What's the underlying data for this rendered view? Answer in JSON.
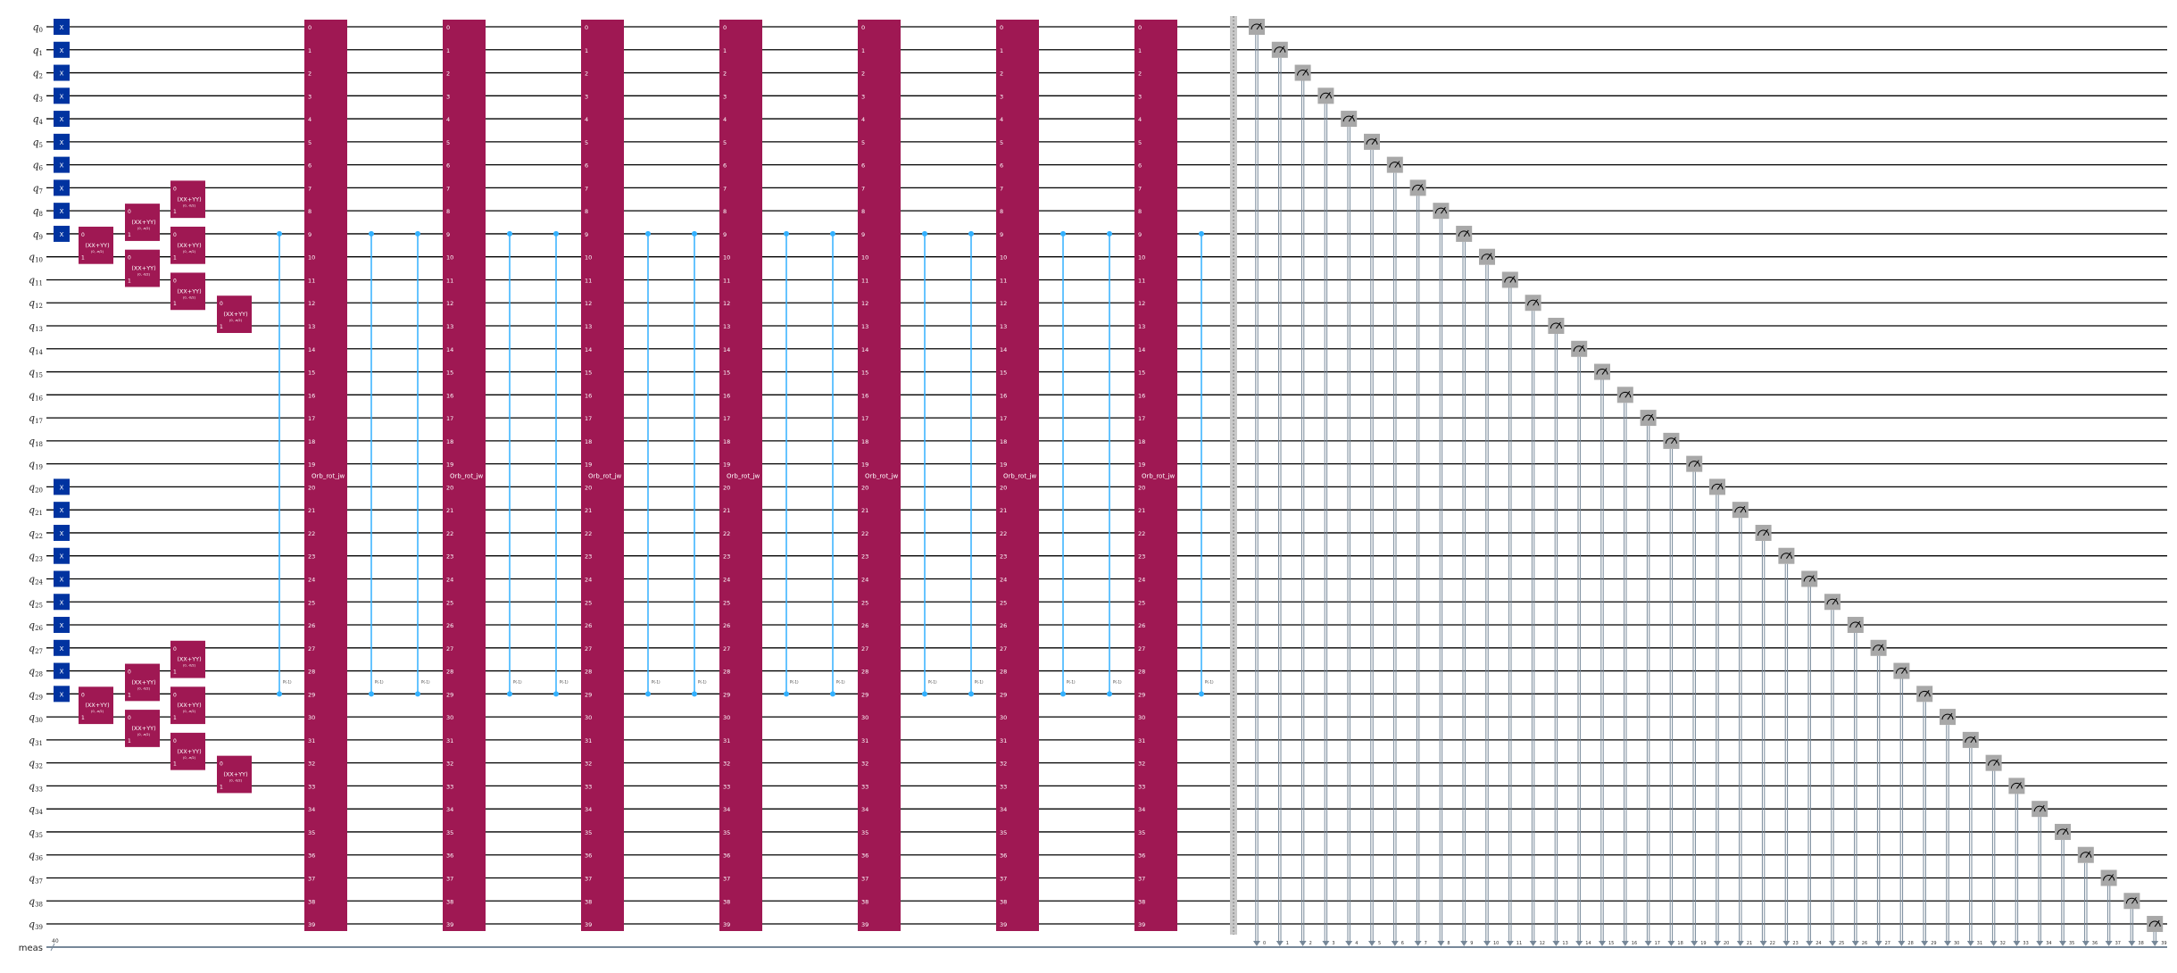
{
  "register": {
    "qubit_prefix": "q",
    "num_qubits": 40,
    "classical_label": "meas",
    "classical_width": "40"
  },
  "colors": {
    "x_gate": "#0033a0",
    "xxyy_gate": "#9f1853",
    "orb_block": "#9f1853",
    "control": "#33b1ff",
    "measure": "#a8a8a8",
    "classical": "#778899",
    "barrier": "#c8c8c8"
  },
  "x_gate": {
    "label": "X",
    "qubits": [
      0,
      1,
      2,
      3,
      4,
      5,
      6,
      7,
      8,
      9,
      20,
      21,
      22,
      23,
      24,
      25,
      26,
      27,
      28,
      29
    ]
  },
  "xxyy_gate": {
    "label": "(XX+YY)",
    "params": "(0, -π/2)",
    "port_top": "0",
    "port_bottom": "1",
    "columns": [
      [
        9,
        29
      ],
      [
        8,
        10,
        28,
        30
      ],
      [
        7,
        9,
        11,
        27,
        29,
        31
      ],
      [
        12,
        32
      ]
    ]
  },
  "orb_block": {
    "label": "Orb_rot_jw",
    "count": 7
  },
  "controlled_phase": {
    "label": "P(-1)",
    "control": 9,
    "target": 29,
    "slots": [
      "before-0",
      "after-0a",
      "after-0b",
      "after-1a",
      "after-1b",
      "after-2a",
      "after-2b",
      "after-3a",
      "after-3b",
      "after-4a",
      "after-4b",
      "after-5a",
      "after-5b",
      "after-6"
    ]
  },
  "measurements": {
    "count": 40
  }
}
